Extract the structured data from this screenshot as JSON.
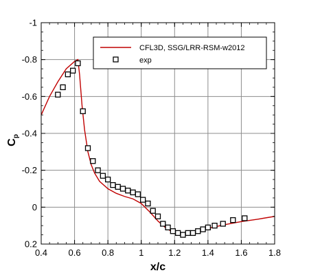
{
  "chart_data": {
    "type": "line",
    "title": "",
    "xlabel": "x/c",
    "ylabel": "C",
    "ylabel_sub": "p",
    "xlim": [
      0.4,
      1.8
    ],
    "ylim": [
      0.2,
      -1.0
    ],
    "y_axis_inverted": true,
    "grid": true,
    "legend_position": "top-right",
    "x_ticks": [
      {
        "value": 0.4,
        "label": "0.4"
      },
      {
        "value": 0.6,
        "label": "0.6"
      },
      {
        "value": 0.8,
        "label": "0.8"
      },
      {
        "value": 1.0,
        "label": "1"
      },
      {
        "value": 1.2,
        "label": "1.2"
      },
      {
        "value": 1.4,
        "label": "1.4"
      },
      {
        "value": 1.6,
        "label": "1.6"
      },
      {
        "value": 1.8,
        "label": "1.8"
      }
    ],
    "y_ticks": [
      {
        "value": -1.0,
        "label": "-1"
      },
      {
        "value": -0.8,
        "label": "-0.8"
      },
      {
        "value": -0.6,
        "label": "-0.6"
      },
      {
        "value": -0.4,
        "label": "-0.4"
      },
      {
        "value": -0.2,
        "label": "-0.2"
      },
      {
        "value": 0.0,
        "label": "0"
      },
      {
        "value": 0.2,
        "label": "0.2"
      }
    ],
    "series": [
      {
        "name": "CFL3D, SSG/LRR-RSM-w2012",
        "style": "line",
        "color": "#c00000",
        "x": [
          0.4,
          0.45,
          0.5,
          0.55,
          0.6,
          0.62,
          0.63,
          0.645,
          0.66,
          0.68,
          0.7,
          0.72,
          0.75,
          0.8,
          0.85,
          0.9,
          0.95,
          1.0,
          1.05,
          1.1,
          1.15,
          1.2,
          1.25,
          1.3,
          1.4,
          1.5,
          1.6,
          1.7,
          1.8
        ],
        "y": [
          -0.5,
          -0.6,
          -0.68,
          -0.75,
          -0.79,
          -0.8,
          -0.72,
          -0.55,
          -0.42,
          -0.3,
          -0.23,
          -0.185,
          -0.14,
          -0.1,
          -0.075,
          -0.058,
          -0.045,
          -0.02,
          0.025,
          0.075,
          0.115,
          0.14,
          0.145,
          0.138,
          0.115,
          0.095,
          0.078,
          0.065,
          0.05
        ]
      },
      {
        "name": "exp",
        "style": "marker",
        "marker": "square",
        "color": "#000000",
        "x": [
          0.5,
          0.53,
          0.56,
          0.59,
          0.62,
          0.65,
          0.68,
          0.71,
          0.74,
          0.77,
          0.8,
          0.83,
          0.86,
          0.89,
          0.92,
          0.95,
          0.98,
          1.01,
          1.04,
          1.07,
          1.1,
          1.13,
          1.16,
          1.19,
          1.22,
          1.25,
          1.28,
          1.31,
          1.34,
          1.37,
          1.4,
          1.44,
          1.49,
          1.55,
          1.62
        ],
        "y": [
          -0.61,
          -0.65,
          -0.72,
          -0.74,
          -0.78,
          -0.52,
          -0.32,
          -0.25,
          -0.2,
          -0.17,
          -0.15,
          -0.12,
          -0.11,
          -0.1,
          -0.09,
          -0.08,
          -0.07,
          -0.04,
          -0.02,
          0.02,
          0.05,
          0.09,
          0.11,
          0.13,
          0.14,
          0.15,
          0.14,
          0.14,
          0.13,
          0.12,
          0.11,
          0.1,
          0.09,
          0.07,
          0.06
        ]
      }
    ]
  }
}
